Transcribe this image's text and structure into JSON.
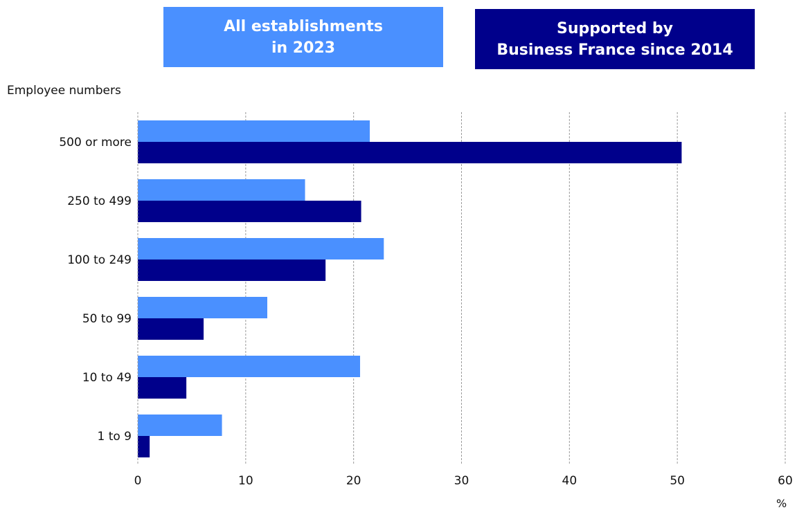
{
  "legend": {
    "all": {
      "line1": "All establishments",
      "line2": "in 2023",
      "color": "#4a90ff"
    },
    "bf": {
      "line1": "Supported by",
      "line2": "Business France since 2014",
      "color": "#00008b"
    }
  },
  "chart_data": {
    "type": "bar",
    "orientation": "horizontal",
    "ylabel": "Employee numbers",
    "unit": "%",
    "categories": [
      "500 or more",
      "250 to 499",
      "100 to 249",
      "50 to 99",
      "10 to 49",
      "1 to 9"
    ],
    "series": [
      {
        "name": "All establishments in 2023",
        "color": "#4a90ff",
        "values": [
          21.5,
          15.5,
          22.8,
          12.0,
          20.6,
          7.8
        ]
      },
      {
        "name": "Supported by Business France since 2014",
        "color": "#00008b",
        "values": [
          50.4,
          20.7,
          17.4,
          6.1,
          4.5,
          1.1
        ]
      }
    ],
    "xlim": [
      0,
      60
    ],
    "xticks": [
      "0",
      "10",
      "20",
      "30",
      "40",
      "50",
      "60"
    ],
    "grid": "vertical-dashed"
  }
}
